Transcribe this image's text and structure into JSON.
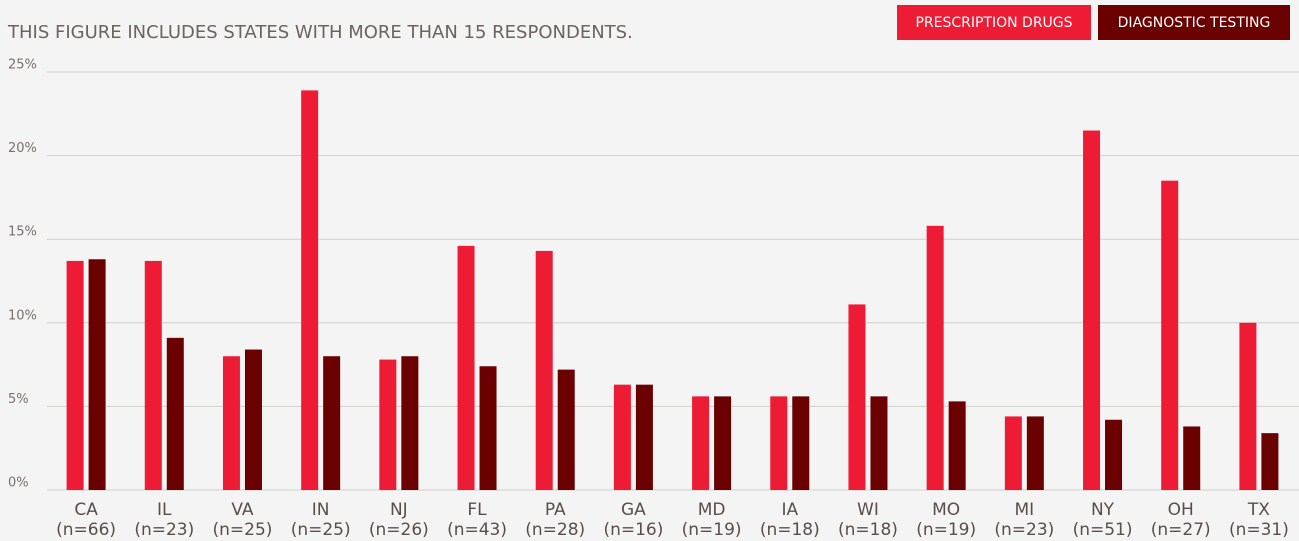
{
  "chart_data": {
    "type": "bar",
    "subtitle": "THIS FIGURE INCLUDES STATES WITH MORE THAN 15 RESPONDENTS.",
    "categories": [
      "CA",
      "IL",
      "VA",
      "IN",
      "NJ",
      "FL",
      "PA",
      "GA",
      "MD",
      "IA",
      "WI",
      "MO",
      "MI",
      "NY",
      "OH",
      "TX"
    ],
    "category_notes": [
      "(n=66)",
      "(n=23)",
      "(n=25)",
      "(n=25)",
      "(n=26)",
      "(n=43)",
      "(n=28)",
      "(n=16)",
      "(n=19)",
      "(n=18)",
      "(n=18)",
      "(n=19)",
      "(n=23)",
      "(n=51)",
      "(n=27)",
      "(n=31)"
    ],
    "series": [
      {
        "name": "PRESCRIPTION DRUGS",
        "color": "#ed1c34",
        "values": [
          13.7,
          13.7,
          8.0,
          23.9,
          7.8,
          14.6,
          14.3,
          6.3,
          5.6,
          5.6,
          11.1,
          15.8,
          4.4,
          21.5,
          18.5,
          10.0
        ]
      },
      {
        "name": "DIAGNOSTIC TESTING",
        "color": "#6b0000",
        "values": [
          13.8,
          9.1,
          8.4,
          8.0,
          8.0,
          7.4,
          7.2,
          6.3,
          5.6,
          5.6,
          5.6,
          5.3,
          4.4,
          4.2,
          3.8,
          3.4
        ]
      }
    ],
    "ylim": [
      0,
      25
    ],
    "yticks": [
      {
        "value": 0,
        "label": "0%"
      },
      {
        "value": 5,
        "label": "5%"
      },
      {
        "value": 10,
        "label": "10%"
      },
      {
        "value": 15,
        "label": "15%"
      },
      {
        "value": 20,
        "label": "20%"
      },
      {
        "value": 25,
        "label": "25%"
      }
    ],
    "grid": true,
    "legend": "top-right"
  }
}
